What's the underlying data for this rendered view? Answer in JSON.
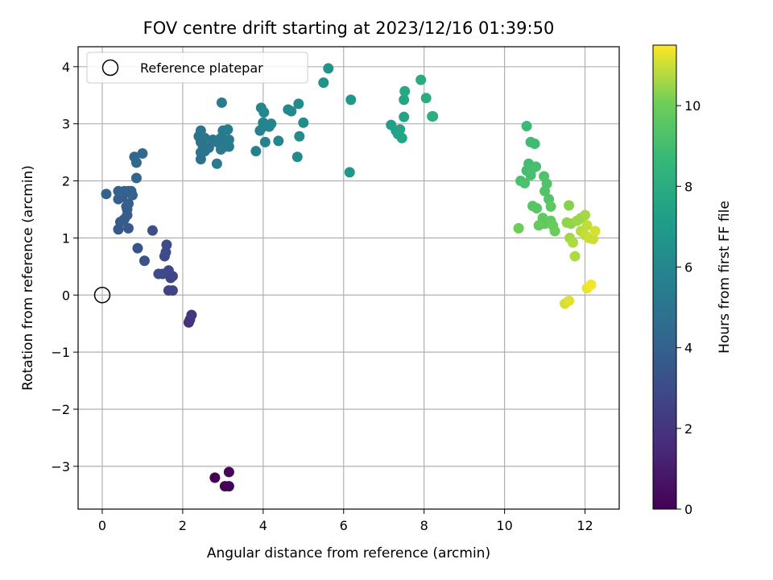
{
  "chart_data": {
    "type": "scatter",
    "title": "FOV centre drift starting at 2023/12/16 01:39:50",
    "xlabel": "Angular distance from reference (arcmin)",
    "ylabel": "Rotation from reference (arcmin)",
    "xlim": [
      -0.6,
      12.85
    ],
    "ylim": [
      -3.75,
      4.35
    ],
    "xticks": [
      0,
      2,
      4,
      6,
      8,
      10,
      12
    ],
    "yticks": [
      -3,
      -2,
      -1,
      0,
      1,
      2,
      3,
      4
    ],
    "grid": true,
    "legend": {
      "position": "top-left",
      "entries": [
        "Reference platepar"
      ]
    },
    "reference_point": {
      "x": 0,
      "y": 0
    },
    "colorbar": {
      "label": "Hours from first FF file",
      "colormap": "viridis",
      "range": [
        0,
        11.5
      ],
      "ticks": [
        0,
        2,
        4,
        6,
        8,
        10
      ]
    },
    "points": [
      {
        "x": 2.8,
        "y": -3.2,
        "c": 0.0
      },
      {
        "x": 3.05,
        "y": -3.35,
        "c": 0.1
      },
      {
        "x": 3.15,
        "y": -3.35,
        "c": 0.15
      },
      {
        "x": 3.15,
        "y": -3.1,
        "c": 0.2
      },
      {
        "x": 2.15,
        "y": -0.48,
        "c": 1.8
      },
      {
        "x": 2.18,
        "y": -0.43,
        "c": 1.9
      },
      {
        "x": 2.22,
        "y": -0.35,
        "c": 2.0
      },
      {
        "x": 1.65,
        "y": 0.08,
        "c": 2.6
      },
      {
        "x": 1.75,
        "y": 0.08,
        "c": 2.6
      },
      {
        "x": 1.7,
        "y": 0.3,
        "c": 2.7
      },
      {
        "x": 1.75,
        "y": 0.33,
        "c": 2.7
      },
      {
        "x": 1.65,
        "y": 0.43,
        "c": 2.8
      },
      {
        "x": 1.4,
        "y": 0.37,
        "c": 2.9
      },
      {
        "x": 1.5,
        "y": 0.37,
        "c": 2.9
      },
      {
        "x": 1.55,
        "y": 0.68,
        "c": 3.0
      },
      {
        "x": 1.58,
        "y": 0.75,
        "c": 3.0
      },
      {
        "x": 1.6,
        "y": 0.88,
        "c": 3.0
      },
      {
        "x": 1.25,
        "y": 1.13,
        "c": 3.2
      },
      {
        "x": 1.05,
        "y": 0.6,
        "c": 3.3
      },
      {
        "x": 0.88,
        "y": 0.82,
        "c": 3.4
      },
      {
        "x": 0.4,
        "y": 1.15,
        "c": 3.6
      },
      {
        "x": 0.65,
        "y": 1.17,
        "c": 3.6
      },
      {
        "x": 0.45,
        "y": 1.28,
        "c": 3.7
      },
      {
        "x": 0.55,
        "y": 1.33,
        "c": 3.7
      },
      {
        "x": 0.62,
        "y": 1.4,
        "c": 3.8
      },
      {
        "x": 0.62,
        "y": 1.5,
        "c": 3.8
      },
      {
        "x": 0.6,
        "y": 1.55,
        "c": 3.8
      },
      {
        "x": 0.65,
        "y": 1.6,
        "c": 3.9
      },
      {
        "x": 0.4,
        "y": 1.68,
        "c": 3.9
      },
      {
        "x": 0.5,
        "y": 1.72,
        "c": 3.9
      },
      {
        "x": 0.75,
        "y": 1.75,
        "c": 4.0
      },
      {
        "x": 0.4,
        "y": 1.82,
        "c": 4.0
      },
      {
        "x": 0.55,
        "y": 1.82,
        "c": 4.0
      },
      {
        "x": 0.65,
        "y": 1.82,
        "c": 4.0
      },
      {
        "x": 0.72,
        "y": 1.82,
        "c": 4.1
      },
      {
        "x": 0.1,
        "y": 1.77,
        "c": 4.1
      },
      {
        "x": 0.85,
        "y": 2.05,
        "c": 4.2
      },
      {
        "x": 0.85,
        "y": 2.32,
        "c": 4.3
      },
      {
        "x": 0.8,
        "y": 2.42,
        "c": 4.3
      },
      {
        "x": 1.0,
        "y": 2.48,
        "c": 4.4
      },
      {
        "x": 2.45,
        "y": 2.38,
        "c": 4.8
      },
      {
        "x": 2.45,
        "y": 2.5,
        "c": 4.8
      },
      {
        "x": 2.55,
        "y": 2.52,
        "c": 4.9
      },
      {
        "x": 2.65,
        "y": 2.58,
        "c": 4.9
      },
      {
        "x": 2.5,
        "y": 2.62,
        "c": 5.0
      },
      {
        "x": 2.45,
        "y": 2.68,
        "c": 5.0
      },
      {
        "x": 2.4,
        "y": 2.78,
        "c": 5.0
      },
      {
        "x": 2.45,
        "y": 2.88,
        "c": 5.1
      },
      {
        "x": 2.55,
        "y": 2.75,
        "c": 5.1
      },
      {
        "x": 2.75,
        "y": 2.72,
        "c": 5.1
      },
      {
        "x": 2.85,
        "y": 2.68,
        "c": 5.2
      },
      {
        "x": 2.95,
        "y": 2.75,
        "c": 5.2
      },
      {
        "x": 3.05,
        "y": 2.72,
        "c": 5.2
      },
      {
        "x": 2.95,
        "y": 2.55,
        "c": 5.3
      },
      {
        "x": 3.05,
        "y": 2.6,
        "c": 5.3
      },
      {
        "x": 3.15,
        "y": 2.6,
        "c": 5.3
      },
      {
        "x": 3.15,
        "y": 2.72,
        "c": 5.3
      },
      {
        "x": 3.0,
        "y": 2.88,
        "c": 5.3
      },
      {
        "x": 3.12,
        "y": 2.9,
        "c": 5.4
      },
      {
        "x": 2.85,
        "y": 2.3,
        "c": 5.4
      },
      {
        "x": 2.97,
        "y": 3.37,
        "c": 5.4
      },
      {
        "x": 3.82,
        "y": 2.52,
        "c": 5.7
      },
      {
        "x": 3.92,
        "y": 2.88,
        "c": 5.7
      },
      {
        "x": 4.0,
        "y": 2.95,
        "c": 5.8
      },
      {
        "x": 4.0,
        "y": 3.02,
        "c": 5.8
      },
      {
        "x": 4.05,
        "y": 2.68,
        "c": 5.8
      },
      {
        "x": 4.15,
        "y": 2.95,
        "c": 5.9
      },
      {
        "x": 4.2,
        "y": 3.0,
        "c": 5.9
      },
      {
        "x": 3.95,
        "y": 3.28,
        "c": 5.9
      },
      {
        "x": 4.02,
        "y": 3.2,
        "c": 6.0
      },
      {
        "x": 4.38,
        "y": 2.7,
        "c": 6.0
      },
      {
        "x": 4.62,
        "y": 3.25,
        "c": 6.1
      },
      {
        "x": 4.7,
        "y": 3.22,
        "c": 6.1
      },
      {
        "x": 4.88,
        "y": 3.35,
        "c": 6.2
      },
      {
        "x": 4.9,
        "y": 2.78,
        "c": 6.2
      },
      {
        "x": 4.85,
        "y": 2.42,
        "c": 6.2
      },
      {
        "x": 5.0,
        "y": 3.02,
        "c": 6.3
      },
      {
        "x": 5.5,
        "y": 3.72,
        "c": 6.5
      },
      {
        "x": 5.62,
        "y": 3.97,
        "c": 6.6
      },
      {
        "x": 6.18,
        "y": 3.42,
        "c": 6.8
      },
      {
        "x": 6.15,
        "y": 2.15,
        "c": 6.8
      },
      {
        "x": 7.18,
        "y": 2.98,
        "c": 7.3
      },
      {
        "x": 7.3,
        "y": 2.88,
        "c": 7.4
      },
      {
        "x": 7.35,
        "y": 2.82,
        "c": 7.4
      },
      {
        "x": 7.4,
        "y": 2.9,
        "c": 7.5
      },
      {
        "x": 7.45,
        "y": 2.75,
        "c": 7.5
      },
      {
        "x": 7.5,
        "y": 3.12,
        "c": 7.6
      },
      {
        "x": 7.5,
        "y": 3.42,
        "c": 7.6
      },
      {
        "x": 7.52,
        "y": 3.57,
        "c": 7.7
      },
      {
        "x": 7.92,
        "y": 3.77,
        "c": 7.9
      },
      {
        "x": 8.05,
        "y": 3.45,
        "c": 8.0
      },
      {
        "x": 8.2,
        "y": 3.13,
        "c": 8.1
      },
      {
        "x": 8.22,
        "y": 3.13,
        "c": 8.1
      },
      {
        "x": 10.55,
        "y": 2.96,
        "c": 8.8
      },
      {
        "x": 10.65,
        "y": 2.68,
        "c": 8.9
      },
      {
        "x": 10.75,
        "y": 2.65,
        "c": 8.9
      },
      {
        "x": 10.6,
        "y": 2.3,
        "c": 9.0
      },
      {
        "x": 10.55,
        "y": 2.18,
        "c": 9.0
      },
      {
        "x": 10.7,
        "y": 2.22,
        "c": 9.1
      },
      {
        "x": 10.78,
        "y": 2.25,
        "c": 9.1
      },
      {
        "x": 10.65,
        "y": 2.1,
        "c": 9.1
      },
      {
        "x": 10.4,
        "y": 2.0,
        "c": 9.2
      },
      {
        "x": 10.5,
        "y": 1.96,
        "c": 9.2
      },
      {
        "x": 10.98,
        "y": 2.08,
        "c": 9.3
      },
      {
        "x": 11.05,
        "y": 1.95,
        "c": 9.3
      },
      {
        "x": 11.0,
        "y": 1.82,
        "c": 9.4
      },
      {
        "x": 11.1,
        "y": 1.68,
        "c": 9.4
      },
      {
        "x": 10.7,
        "y": 1.56,
        "c": 9.5
      },
      {
        "x": 10.8,
        "y": 1.52,
        "c": 9.5
      },
      {
        "x": 11.15,
        "y": 1.55,
        "c": 9.6
      },
      {
        "x": 10.95,
        "y": 1.35,
        "c": 9.7
      },
      {
        "x": 11.0,
        "y": 1.25,
        "c": 9.7
      },
      {
        "x": 10.85,
        "y": 1.22,
        "c": 9.8
      },
      {
        "x": 11.15,
        "y": 1.3,
        "c": 9.8
      },
      {
        "x": 11.2,
        "y": 1.22,
        "c": 9.9
      },
      {
        "x": 11.25,
        "y": 1.12,
        "c": 9.9
      },
      {
        "x": 10.35,
        "y": 1.17,
        "c": 10.0
      },
      {
        "x": 11.6,
        "y": 1.57,
        "c": 10.3
      },
      {
        "x": 11.55,
        "y": 1.27,
        "c": 10.4
      },
      {
        "x": 11.65,
        "y": 1.25,
        "c": 10.4
      },
      {
        "x": 11.8,
        "y": 1.3,
        "c": 10.5
      },
      {
        "x": 11.9,
        "y": 1.35,
        "c": 10.5
      },
      {
        "x": 12.0,
        "y": 1.4,
        "c": 10.6
      },
      {
        "x": 11.62,
        "y": 1.0,
        "c": 10.6
      },
      {
        "x": 11.7,
        "y": 0.92,
        "c": 10.7
      },
      {
        "x": 11.75,
        "y": 0.68,
        "c": 10.7
      },
      {
        "x": 11.9,
        "y": 1.12,
        "c": 10.8
      },
      {
        "x": 12.0,
        "y": 1.05,
        "c": 10.9
      },
      {
        "x": 12.05,
        "y": 1.22,
        "c": 10.9
      },
      {
        "x": 12.1,
        "y": 1.0,
        "c": 11.0
      },
      {
        "x": 12.2,
        "y": 0.98,
        "c": 11.0
      },
      {
        "x": 12.25,
        "y": 1.12,
        "c": 11.1
      },
      {
        "x": 11.5,
        "y": -0.15,
        "c": 11.1
      },
      {
        "x": 11.6,
        "y": -0.1,
        "c": 11.2
      },
      {
        "x": 12.05,
        "y": 0.12,
        "c": 11.3
      },
      {
        "x": 12.15,
        "y": 0.18,
        "c": 11.4
      }
    ]
  }
}
